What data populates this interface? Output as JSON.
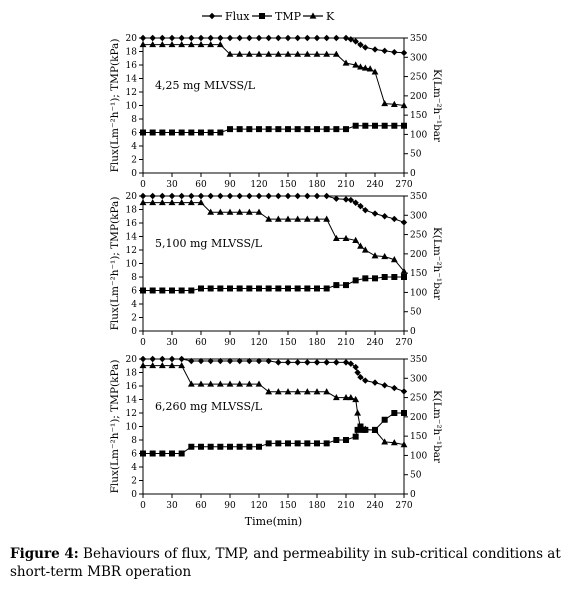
{
  "caption": {
    "label": "Figure 4:",
    "text": "Behaviours of flux, TMP, and permeability in sub-critical conditions at short-term MBR operation"
  },
  "legend": [
    {
      "name": "Flux",
      "marker": "diamond"
    },
    {
      "name": "TMP",
      "marker": "square"
    },
    {
      "name": "K",
      "marker": "triangle"
    }
  ],
  "chart_data": [
    {
      "type": "line",
      "annotation": "4,25 mg MLVSS/L",
      "xlabel": "",
      "ylabel": "Flux(Lm⁻²h⁻¹); TMP(kPa)",
      "y2label": "K(Lm⁻²h⁻¹bar",
      "xlim": [
        0,
        270
      ],
      "ylim": [
        0,
        20
      ],
      "y2lim": [
        0,
        350
      ],
      "xticks": [
        0,
        30,
        60,
        90,
        120,
        150,
        180,
        210,
        240,
        270
      ],
      "yticks": [
        0,
        2,
        4,
        6,
        8,
        10,
        12,
        14,
        16,
        18,
        20
      ],
      "y2ticks": [
        0,
        50,
        100,
        150,
        200,
        250,
        300,
        350
      ],
      "grid": false,
      "series": [
        {
          "name": "Flux",
          "axis": "left",
          "x": [
            0,
            10,
            20,
            30,
            40,
            50,
            60,
            70,
            80,
            90,
            100,
            110,
            120,
            130,
            140,
            150,
            160,
            170,
            180,
            190,
            200,
            210,
            215,
            220,
            225,
            230,
            240,
            250,
            260,
            270
          ],
          "y": [
            20,
            20,
            20,
            20,
            20,
            20,
            20,
            20,
            20,
            20,
            20,
            20,
            20,
            20,
            20,
            20,
            20,
            20,
            20,
            20,
            20,
            20,
            19.8,
            19.5,
            19,
            18.6,
            18.3,
            18.1,
            17.9,
            17.8
          ]
        },
        {
          "name": "TMP",
          "axis": "left",
          "x": [
            0,
            10,
            20,
            30,
            40,
            50,
            60,
            70,
            80,
            90,
            100,
            110,
            120,
            130,
            140,
            150,
            160,
            170,
            180,
            190,
            200,
            210,
            220,
            230,
            240,
            250,
            260,
            270
          ],
          "y": [
            6,
            6,
            6,
            6,
            6,
            6,
            6,
            6,
            6,
            6.5,
            6.5,
            6.5,
            6.5,
            6.5,
            6.5,
            6.5,
            6.5,
            6.5,
            6.5,
            6.5,
            6.5,
            6.5,
            7,
            7,
            7,
            7,
            7,
            7
          ]
        },
        {
          "name": "K",
          "axis": "right",
          "x": [
            0,
            10,
            20,
            30,
            40,
            50,
            60,
            70,
            80,
            90,
            100,
            110,
            120,
            130,
            140,
            150,
            160,
            170,
            180,
            190,
            200,
            210,
            220,
            225,
            230,
            235,
            240,
            250,
            260,
            270
          ],
          "y": [
            333,
            333,
            333,
            333,
            333,
            333,
            333,
            333,
            333,
            308,
            308,
            308,
            308,
            308,
            308,
            308,
            308,
            308,
            308,
            308,
            308,
            285,
            280,
            275,
            272,
            270,
            262,
            180,
            178,
            175
          ]
        }
      ]
    },
    {
      "type": "line",
      "annotation": "5,100 mg MLVSS/L",
      "xlabel": "",
      "ylabel": "Flux(Lm⁻²h⁻¹); TMP(kPa)",
      "y2label": "K(Lm⁻²h⁻¹bar",
      "xlim": [
        0,
        270
      ],
      "ylim": [
        0,
        20
      ],
      "y2lim": [
        0,
        350
      ],
      "xticks": [
        0,
        30,
        60,
        90,
        120,
        150,
        180,
        210,
        240,
        270
      ],
      "yticks": [
        0,
        2,
        4,
        6,
        8,
        10,
        12,
        14,
        16,
        18,
        20
      ],
      "y2ticks": [
        0,
        50,
        100,
        150,
        200,
        250,
        300,
        350
      ],
      "grid": false,
      "series": [
        {
          "name": "Flux",
          "axis": "left",
          "x": [
            0,
            10,
            20,
            30,
            40,
            50,
            60,
            70,
            80,
            90,
            100,
            110,
            120,
            130,
            140,
            150,
            160,
            170,
            180,
            190,
            200,
            210,
            215,
            220,
            225,
            230,
            240,
            250,
            260,
            270
          ],
          "y": [
            20,
            20,
            20,
            20,
            20,
            20,
            20,
            20,
            20,
            20,
            20,
            20,
            20,
            20,
            20,
            20,
            20,
            20,
            20,
            20,
            19.6,
            19.5,
            19.4,
            19,
            18.5,
            17.9,
            17.4,
            17,
            16.6,
            16.1
          ]
        },
        {
          "name": "TMP",
          "axis": "left",
          "x": [
            0,
            10,
            20,
            30,
            40,
            50,
            60,
            70,
            80,
            90,
            100,
            110,
            120,
            130,
            140,
            150,
            160,
            170,
            180,
            190,
            200,
            210,
            220,
            230,
            240,
            250,
            260,
            270
          ],
          "y": [
            6,
            6,
            6,
            6,
            6,
            6,
            6.3,
            6.3,
            6.3,
            6.3,
            6.3,
            6.3,
            6.3,
            6.3,
            6.3,
            6.3,
            6.3,
            6.3,
            6.3,
            6.3,
            6.8,
            6.8,
            7.5,
            7.8,
            7.8,
            8,
            8,
            8
          ]
        },
        {
          "name": "K",
          "axis": "right",
          "x": [
            0,
            10,
            20,
            30,
            40,
            50,
            60,
            70,
            80,
            90,
            100,
            110,
            120,
            130,
            140,
            150,
            160,
            170,
            180,
            190,
            200,
            210,
            220,
            225,
            230,
            240,
            250,
            260,
            270
          ],
          "y": [
            333,
            333,
            333,
            333,
            333,
            333,
            333,
            308,
            308,
            308,
            308,
            308,
            308,
            290,
            290,
            290,
            290,
            290,
            290,
            290,
            240,
            240,
            235,
            220,
            210,
            195,
            193,
            185,
            155
          ]
        }
      ]
    },
    {
      "type": "line",
      "annotation": "6,260 mg MLVSS/L",
      "xlabel": "Time(min)",
      "ylabel": "Flux(Lm⁻²h⁻¹); TMP(kPa)",
      "y2label": "K(Lm⁻²h⁻¹bar",
      "xlim": [
        0,
        270
      ],
      "ylim": [
        0,
        20
      ],
      "y2lim": [
        0,
        350
      ],
      "xticks": [
        0,
        30,
        60,
        90,
        120,
        150,
        180,
        210,
        240,
        270
      ],
      "yticks": [
        0,
        2,
        4,
        6,
        8,
        10,
        12,
        14,
        16,
        18,
        20
      ],
      "y2ticks": [
        0,
        50,
        100,
        150,
        200,
        250,
        300,
        350
      ],
      "grid": false,
      "series": [
        {
          "name": "Flux",
          "axis": "left",
          "x": [
            0,
            10,
            20,
            30,
            40,
            50,
            60,
            70,
            80,
            90,
            100,
            110,
            120,
            130,
            140,
            150,
            160,
            170,
            180,
            190,
            200,
            210,
            215,
            220,
            222,
            225,
            230,
            240,
            250,
            260,
            270
          ],
          "y": [
            20,
            20,
            20,
            20,
            20,
            19.7,
            19.7,
            19.7,
            19.7,
            19.7,
            19.7,
            19.7,
            19.7,
            19.7,
            19.5,
            19.5,
            19.5,
            19.5,
            19.5,
            19.5,
            19.5,
            19.5,
            19.3,
            18.8,
            18,
            17.3,
            16.8,
            16.5,
            16.1,
            15.7,
            15.2
          ]
        },
        {
          "name": "TMP",
          "axis": "left",
          "x": [
            0,
            10,
            20,
            30,
            40,
            50,
            60,
            70,
            80,
            90,
            100,
            110,
            120,
            130,
            140,
            150,
            160,
            170,
            180,
            190,
            200,
            210,
            220,
            222,
            225,
            228,
            230,
            240,
            250,
            260,
            270
          ],
          "y": [
            6,
            6,
            6,
            6,
            6,
            7,
            7,
            7,
            7,
            7,
            7,
            7,
            7,
            7.5,
            7.5,
            7.5,
            7.5,
            7.5,
            7.5,
            7.5,
            8,
            8,
            8.5,
            9.5,
            10,
            9.5,
            9.5,
            9.5,
            11,
            12,
            12
          ]
        },
        {
          "name": "K",
          "axis": "right",
          "x": [
            0,
            10,
            20,
            30,
            40,
            50,
            60,
            70,
            80,
            90,
            100,
            110,
            120,
            130,
            140,
            150,
            160,
            170,
            180,
            190,
            200,
            210,
            215,
            220,
            222,
            225,
            230,
            240,
            250,
            260,
            270
          ],
          "y": [
            333,
            333,
            333,
            333,
            333,
            285,
            285,
            285,
            285,
            285,
            285,
            285,
            285,
            265,
            265,
            265,
            265,
            265,
            265,
            265,
            250,
            250,
            250,
            245,
            210,
            170,
            168,
            165,
            135,
            133,
            128
          ]
        }
      ]
    }
  ]
}
